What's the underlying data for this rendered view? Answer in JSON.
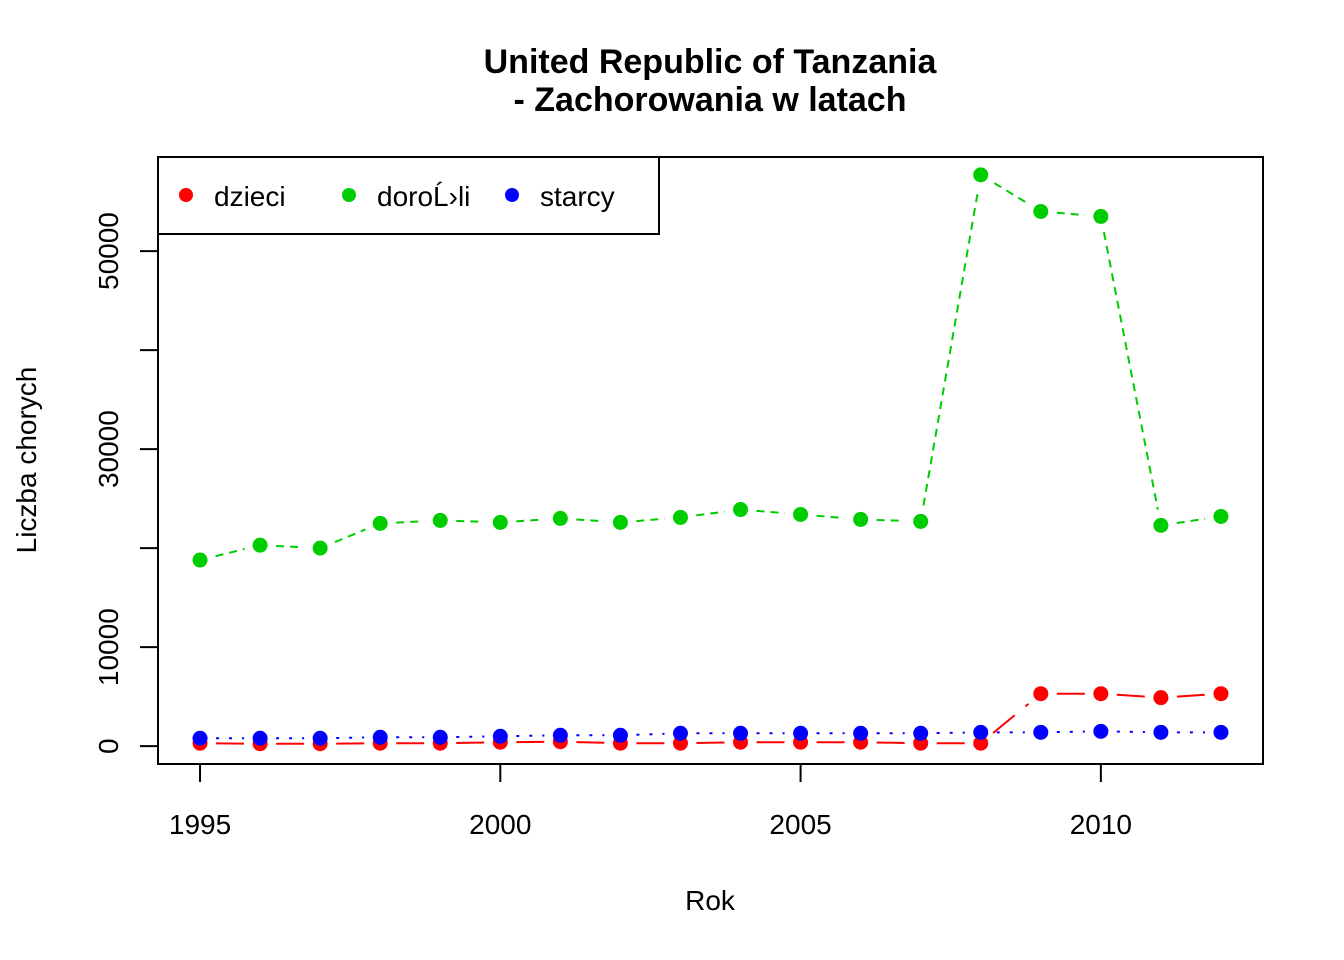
{
  "chart_data": {
    "type": "line",
    "title": "United Republic of Tanzania",
    "subtitle": "- Zachorowania w latach",
    "xlabel": "Rok",
    "ylabel": "Liczba chorych",
    "x": [
      1995,
      1996,
      1997,
      1998,
      1999,
      2000,
      2001,
      2002,
      2003,
      2004,
      2005,
      2006,
      2007,
      2008,
      2009,
      2010,
      2011,
      2012
    ],
    "xlim": [
      1994.3,
      2012.7
    ],
    "ylim": [
      -1800,
      59500
    ],
    "xticks": [
      "1995",
      "2000",
      "2005",
      "2010"
    ],
    "xtick_values": [
      1995,
      2000,
      2005,
      2010
    ],
    "yticks": [
      "0",
      "10000",
      "30000",
      "50000"
    ],
    "ytick_values": [
      0,
      10000,
      30000,
      50000
    ],
    "yticks_unlabeled": [
      20000,
      40000
    ],
    "grid": false,
    "legend": {
      "position": "top-left",
      "entries": [
        "dzieci",
        "doroĹ›li",
        "starcy"
      ]
    },
    "series": [
      {
        "name": "dzieci",
        "color": "#ff0000",
        "dash": "long-dash",
        "values": [
          300,
          250,
          250,
          300,
          300,
          400,
          450,
          300,
          300,
          400,
          400,
          400,
          300,
          300,
          5300,
          5300,
          4900,
          5300
        ]
      },
      {
        "name": "doroĹ›li",
        "color": "#00cd00",
        "dash": "dashed",
        "values": [
          18800,
          20300,
          20000,
          22500,
          22800,
          22600,
          23000,
          22600,
          23100,
          23900,
          23400,
          22900,
          22700,
          57700,
          54000,
          53500,
          22300,
          23200
        ]
      },
      {
        "name": "starcy",
        "color": "#0000ff",
        "dash": "dotted",
        "values": [
          800,
          800,
          800,
          900,
          900,
          1000,
          1100,
          1100,
          1300,
          1300,
          1300,
          1300,
          1300,
          1400,
          1400,
          1500,
          1400,
          1400
        ]
      }
    ]
  }
}
